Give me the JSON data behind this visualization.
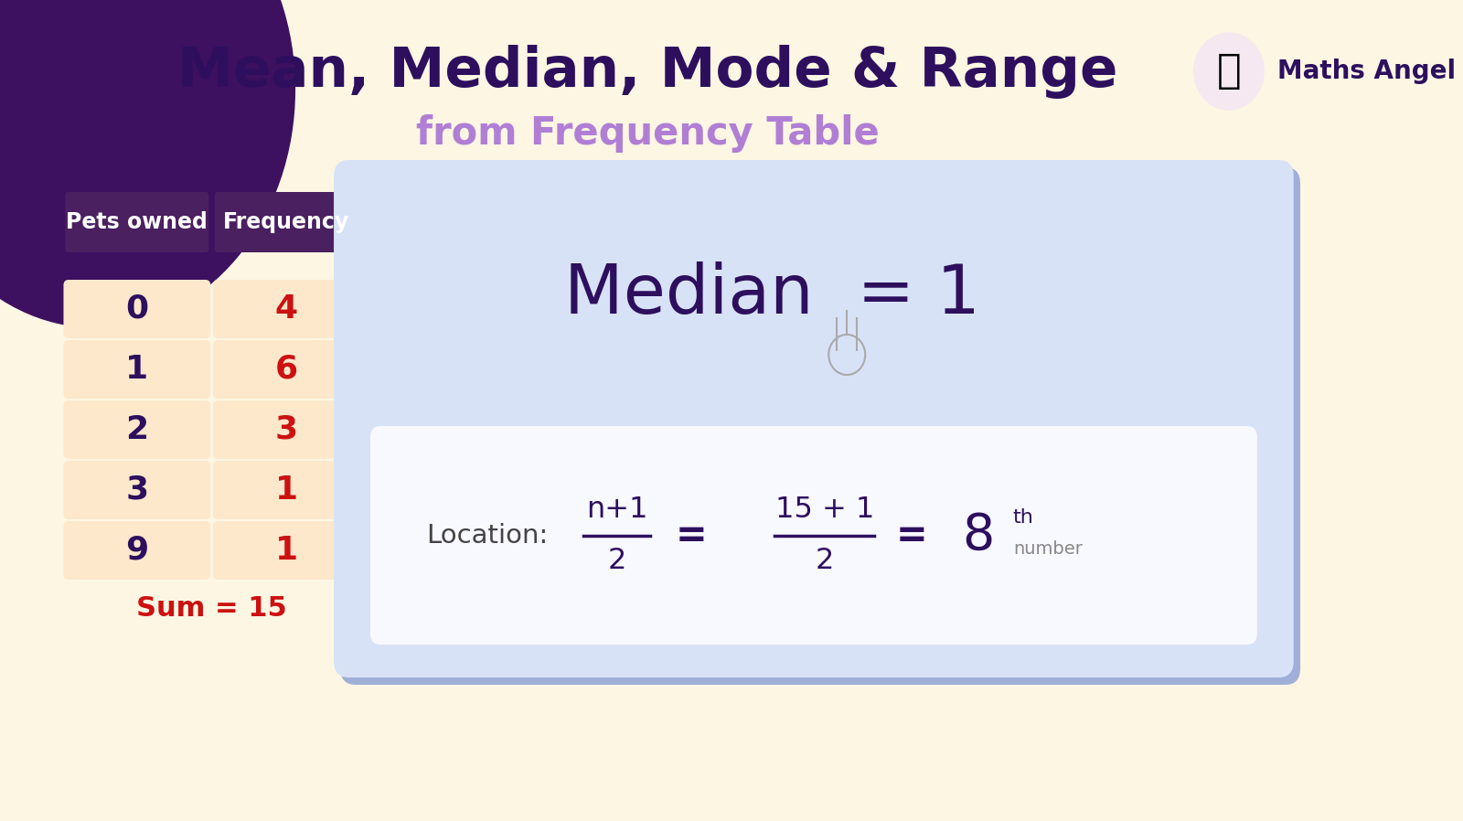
{
  "bg_color": "#fdf6e3",
  "title_line1": "Mean, Median, Mode & Range",
  "title_line2": "from Frequency Table",
  "title_color": "#2d0f5e",
  "subtitle_color": "#b07fd4",
  "table_header_bg": "#4a2060",
  "table_header_text": "#ffffff",
  "table_cell_bg": "#fde8cc",
  "table_pets_color": "#2d0f5e",
  "table_freq_color": "#cc1111",
  "pets_owned": [
    "0",
    "1",
    "2",
    "3",
    "9"
  ],
  "frequencies": [
    "4",
    "6",
    "3",
    "1",
    "1"
  ],
  "sum_text": "Sum = 15",
  "sum_color": "#cc1111",
  "info_box_bg": "#d8e2f7",
  "info_box_shadow": "#a0afd8",
  "median_text_color": "#2d0f5e",
  "formula_box_bg": "#f8f8ff",
  "formula_text_color": "#2d0f5e",
  "location_label_color": "#444444",
  "blob_color": "#3d1060",
  "logo_text": "Maths Angel",
  "logo_text_color": "#2d0f5e"
}
